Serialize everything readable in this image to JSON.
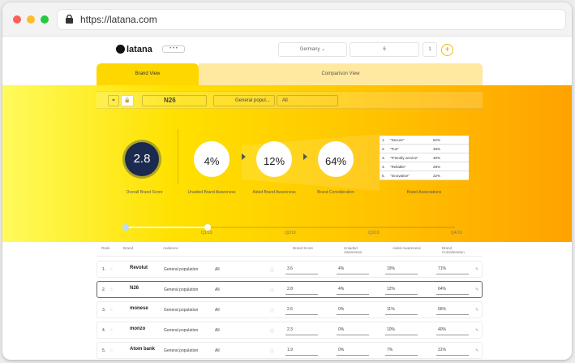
{
  "browser": {
    "url": "https://latana.com"
  },
  "app": {
    "logo": "latana",
    "pill": "• • •",
    "country": "Germany",
    "field2": "6",
    "field3": "1",
    "plus": "+"
  },
  "tabs": {
    "brand_view": "Brand View",
    "comparison_view": "Comparison View"
  },
  "filters": {
    "brand": "N26",
    "audience": "General popul...",
    "segment": "All"
  },
  "metrics": {
    "overall": {
      "value": "2.8",
      "label": "Overall Brand Score"
    },
    "unaided": {
      "value": "4%",
      "label": "Unaided Brand Awareness"
    },
    "aided": {
      "value": "12%",
      "label": "Aided Brand Awareness"
    },
    "consideration": {
      "value": "64%",
      "label": "Brand Consideration"
    },
    "associations_label": "Brand Associations"
  },
  "associations": [
    {
      "rank": "1.",
      "name": "\"Secure\"",
      "value": "62%"
    },
    {
      "rank": "2.",
      "name": "\"Fun\"",
      "value": "48%"
    },
    {
      "rank": "3.",
      "name": "\"Friendly service\"",
      "value": "46%"
    },
    {
      "rank": "4.",
      "name": "\"Reliable\"",
      "value": "28%"
    },
    {
      "rank": "5.",
      "name": "\"Innovative\"",
      "value": "22%"
    }
  ],
  "timeline": {
    "selected_fraction": 0.25,
    "labels": [
      "Q1/19",
      "Q2/19",
      "Q3/19",
      "Q4/19"
    ]
  },
  "table": {
    "headers": [
      "Rank",
      "Brand",
      "Audience",
      "Brand Score",
      "Unaided Awareness",
      "Aided Awareness",
      "Brand Consideration"
    ],
    "rows": [
      {
        "rank": "1.",
        "brand": "Revolut",
        "audience": "General population",
        "segment": "All",
        "score": "3.6",
        "unaided": "4%",
        "aided": "19%",
        "consideration": "71%",
        "active": false
      },
      {
        "rank": "2.",
        "brand": "N26",
        "audience": "General population",
        "segment": "All",
        "score": "2.8",
        "unaided": "4%",
        "aided": "12%",
        "consideration": "64%",
        "active": true
      },
      {
        "rank": "3.",
        "brand": "monese",
        "audience": "General population",
        "segment": "All",
        "score": "2.6",
        "unaided": "0%",
        "aided": "11%",
        "consideration": "66%",
        "active": false
      },
      {
        "rank": "4.",
        "brand": "monzo",
        "audience": "General population",
        "segment": "All",
        "score": "2.3",
        "unaided": "0%",
        "aided": "10%",
        "consideration": "40%",
        "active": false
      },
      {
        "rank": "5.",
        "brand": "Atom bank",
        "audience": "General population",
        "segment": "All",
        "score": "1.9",
        "unaided": "0%",
        "aided": "7%",
        "consideration": "31%",
        "active": false
      }
    ]
  },
  "colors": {
    "accent": "#ffd700",
    "navy": "#1b2a4e"
  }
}
